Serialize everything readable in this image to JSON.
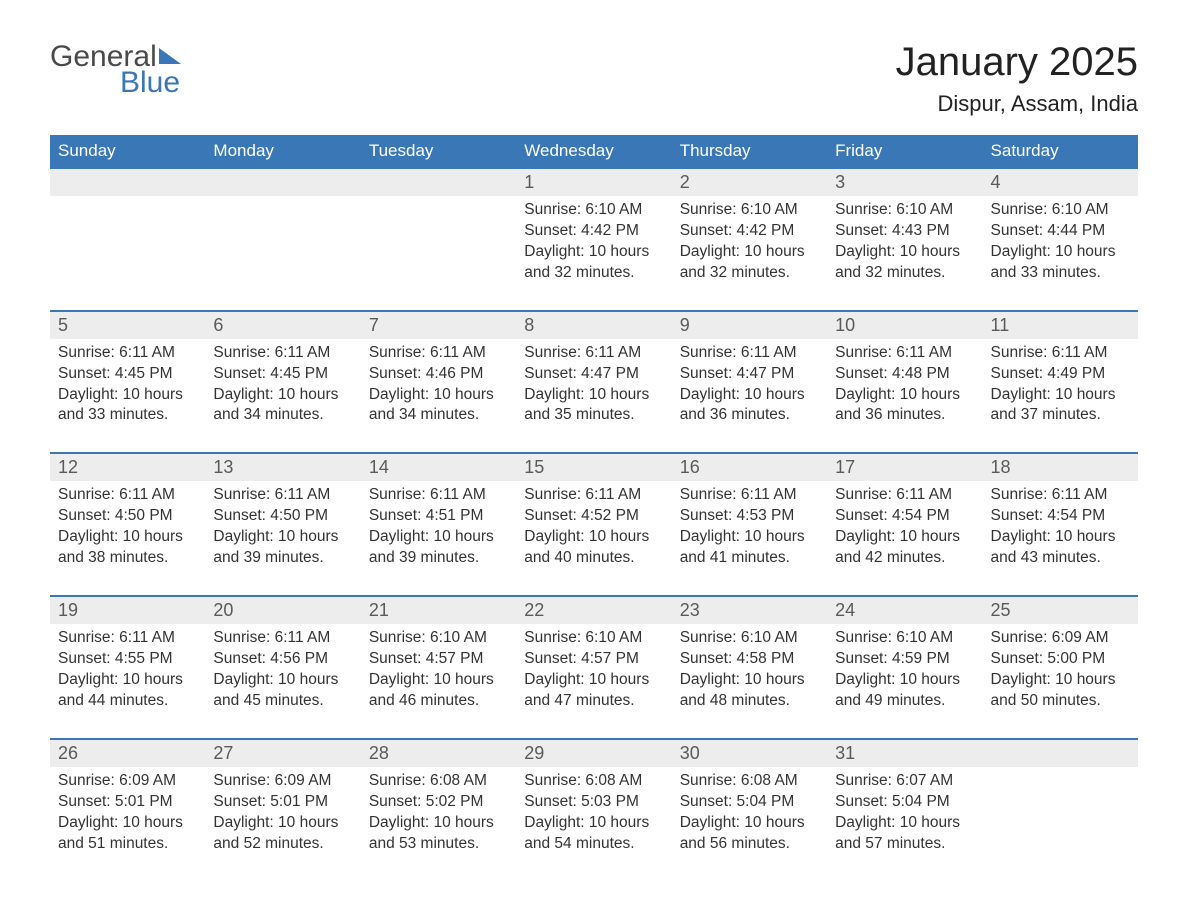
{
  "logo": {
    "word1": "General",
    "word2": "Blue"
  },
  "title": "January 2025",
  "location": "Dispur, Assam, India",
  "colors": {
    "header_bg": "#3a77b7",
    "header_text": "#ffffff",
    "daynum_bg": "#ededed",
    "text": "#333333",
    "rule": "#3a77b7",
    "page_bg": "#ffffff"
  },
  "day_headers": [
    "Sunday",
    "Monday",
    "Tuesday",
    "Wednesday",
    "Thursday",
    "Friday",
    "Saturday"
  ],
  "labels": {
    "sunrise": "Sunrise:",
    "sunset": "Sunset:",
    "daylight": "Daylight:"
  },
  "weeks": [
    [
      null,
      null,
      null,
      {
        "n": "1",
        "sunrise": "6:10 AM",
        "sunset": "4:42 PM",
        "daylight": "10 hours and 32 minutes."
      },
      {
        "n": "2",
        "sunrise": "6:10 AM",
        "sunset": "4:42 PM",
        "daylight": "10 hours and 32 minutes."
      },
      {
        "n": "3",
        "sunrise": "6:10 AM",
        "sunset": "4:43 PM",
        "daylight": "10 hours and 32 minutes."
      },
      {
        "n": "4",
        "sunrise": "6:10 AM",
        "sunset": "4:44 PM",
        "daylight": "10 hours and 33 minutes."
      }
    ],
    [
      {
        "n": "5",
        "sunrise": "6:11 AM",
        "sunset": "4:45 PM",
        "daylight": "10 hours and 33 minutes."
      },
      {
        "n": "6",
        "sunrise": "6:11 AM",
        "sunset": "4:45 PM",
        "daylight": "10 hours and 34 minutes."
      },
      {
        "n": "7",
        "sunrise": "6:11 AM",
        "sunset": "4:46 PM",
        "daylight": "10 hours and 34 minutes."
      },
      {
        "n": "8",
        "sunrise": "6:11 AM",
        "sunset": "4:47 PM",
        "daylight": "10 hours and 35 minutes."
      },
      {
        "n": "9",
        "sunrise": "6:11 AM",
        "sunset": "4:47 PM",
        "daylight": "10 hours and 36 minutes."
      },
      {
        "n": "10",
        "sunrise": "6:11 AM",
        "sunset": "4:48 PM",
        "daylight": "10 hours and 36 minutes."
      },
      {
        "n": "11",
        "sunrise": "6:11 AM",
        "sunset": "4:49 PM",
        "daylight": "10 hours and 37 minutes."
      }
    ],
    [
      {
        "n": "12",
        "sunrise": "6:11 AM",
        "sunset": "4:50 PM",
        "daylight": "10 hours and 38 minutes."
      },
      {
        "n": "13",
        "sunrise": "6:11 AM",
        "sunset": "4:50 PM",
        "daylight": "10 hours and 39 minutes."
      },
      {
        "n": "14",
        "sunrise": "6:11 AM",
        "sunset": "4:51 PM",
        "daylight": "10 hours and 39 minutes."
      },
      {
        "n": "15",
        "sunrise": "6:11 AM",
        "sunset": "4:52 PM",
        "daylight": "10 hours and 40 minutes."
      },
      {
        "n": "16",
        "sunrise": "6:11 AM",
        "sunset": "4:53 PM",
        "daylight": "10 hours and 41 minutes."
      },
      {
        "n": "17",
        "sunrise": "6:11 AM",
        "sunset": "4:54 PM",
        "daylight": "10 hours and 42 minutes."
      },
      {
        "n": "18",
        "sunrise": "6:11 AM",
        "sunset": "4:54 PM",
        "daylight": "10 hours and 43 minutes."
      }
    ],
    [
      {
        "n": "19",
        "sunrise": "6:11 AM",
        "sunset": "4:55 PM",
        "daylight": "10 hours and 44 minutes."
      },
      {
        "n": "20",
        "sunrise": "6:11 AM",
        "sunset": "4:56 PM",
        "daylight": "10 hours and 45 minutes."
      },
      {
        "n": "21",
        "sunrise": "6:10 AM",
        "sunset": "4:57 PM",
        "daylight": "10 hours and 46 minutes."
      },
      {
        "n": "22",
        "sunrise": "6:10 AM",
        "sunset": "4:57 PM",
        "daylight": "10 hours and 47 minutes."
      },
      {
        "n": "23",
        "sunrise": "6:10 AM",
        "sunset": "4:58 PM",
        "daylight": "10 hours and 48 minutes."
      },
      {
        "n": "24",
        "sunrise": "6:10 AM",
        "sunset": "4:59 PM",
        "daylight": "10 hours and 49 minutes."
      },
      {
        "n": "25",
        "sunrise": "6:09 AM",
        "sunset": "5:00 PM",
        "daylight": "10 hours and 50 minutes."
      }
    ],
    [
      {
        "n": "26",
        "sunrise": "6:09 AM",
        "sunset": "5:01 PM",
        "daylight": "10 hours and 51 minutes."
      },
      {
        "n": "27",
        "sunrise": "6:09 AM",
        "sunset": "5:01 PM",
        "daylight": "10 hours and 52 minutes."
      },
      {
        "n": "28",
        "sunrise": "6:08 AM",
        "sunset": "5:02 PM",
        "daylight": "10 hours and 53 minutes."
      },
      {
        "n": "29",
        "sunrise": "6:08 AM",
        "sunset": "5:03 PM",
        "daylight": "10 hours and 54 minutes."
      },
      {
        "n": "30",
        "sunrise": "6:08 AM",
        "sunset": "5:04 PM",
        "daylight": "10 hours and 56 minutes."
      },
      {
        "n": "31",
        "sunrise": "6:07 AM",
        "sunset": "5:04 PM",
        "daylight": "10 hours and 57 minutes."
      },
      null
    ]
  ]
}
